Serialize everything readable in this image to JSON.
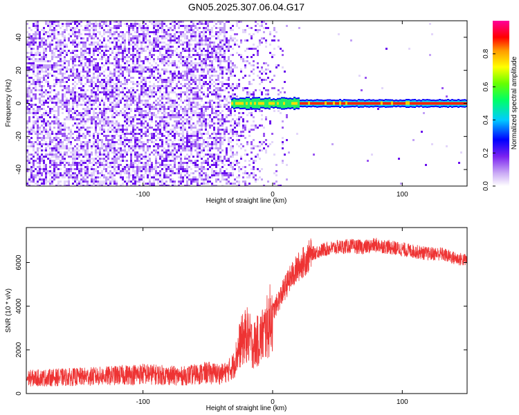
{
  "chart_data": [
    {
      "type": "heatmap",
      "title": "GN05.2025.307.06.04.G17",
      "xlabel": "Height of straight line (km)",
      "ylabel": "Frequency (Hz)",
      "xlim": [
        -190,
        150
      ],
      "ylim": [
        -50,
        50
      ],
      "x_ticks": [
        -100,
        0,
        100
      ],
      "y_ticks": [
        -40,
        -20,
        0,
        20,
        40
      ],
      "colorbar": {
        "label": "Normalized spectral amplitude",
        "range": [
          0,
          1
        ],
        "ticks": [
          0,
          0.2,
          0.4,
          0.6,
          0.8
        ]
      },
      "features": [
        {
          "name": "noise-region",
          "x_range": [
            -190,
            -30
          ],
          "description": "scattered low amplitude noise across all frequencies"
        },
        {
          "name": "transition-region",
          "x_range": [
            -30,
            12
          ],
          "description": "sparse noise with emerging signal near 0 Hz"
        },
        {
          "name": "signal-band",
          "x_range": [
            -32,
            150
          ],
          "frequency": 0,
          "peak_amplitude": 1.0
        }
      ]
    },
    {
      "type": "line",
      "xlabel": "Height of straight line (km)",
      "ylabel": "SNR (10 * v/v)",
      "xlim": [
        -190,
        150
      ],
      "ylim": [
        0,
        7600
      ],
      "x_ticks": [
        -100,
        0,
        100
      ],
      "y_ticks": [
        0,
        2000,
        4000,
        6000
      ],
      "series": [
        {
          "name": "SNR",
          "color": "#ee3333",
          "x": [
            -190,
            -160,
            -130,
            -100,
            -70,
            -50,
            -40,
            -35,
            -30,
            -25,
            -20,
            -15,
            -10,
            -5,
            0,
            5,
            10,
            15,
            20,
            25,
            30,
            40,
            50,
            60,
            70,
            80,
            90,
            100,
            110,
            120,
            130,
            140,
            150
          ],
          "values": [
            700,
            750,
            800,
            900,
            800,
            950,
            900,
            1000,
            1300,
            2300,
            2700,
            2200,
            2500,
            2900,
            3700,
            4300,
            4900,
            5400,
            5800,
            6100,
            6400,
            6600,
            6700,
            6750,
            6700,
            6800,
            6700,
            6600,
            6500,
            6400,
            6400,
            6200,
            6100
          ]
        }
      ]
    }
  ]
}
